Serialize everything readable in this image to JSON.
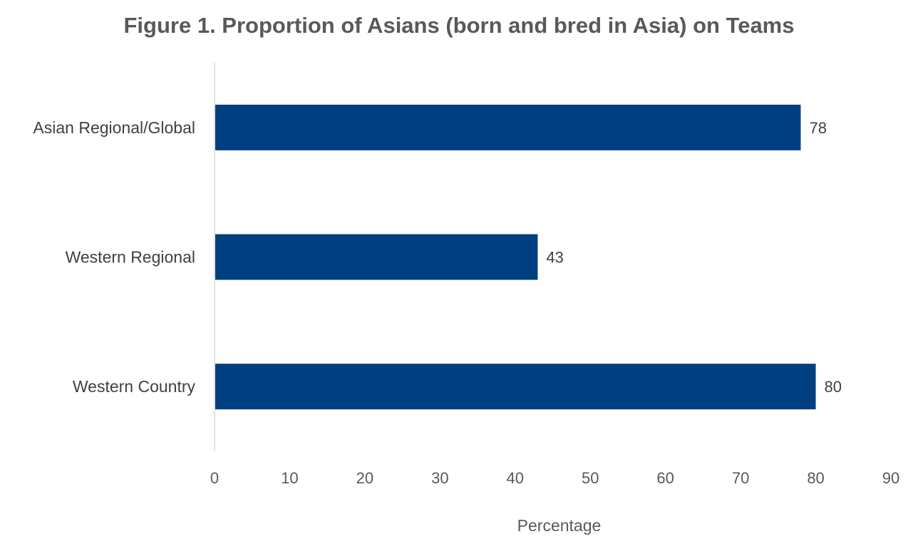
{
  "chart_data": {
    "type": "bar",
    "orientation": "horizontal",
    "title": "Figure 1. Proportion of Asians (born and bred in Asia) on Teams",
    "xlabel": "Percentage",
    "ylabel": "",
    "categories": [
      "Asian Regional/Global",
      "Western Regional",
      "Western Country"
    ],
    "values": [
      78,
      43,
      80
    ],
    "xlim": [
      0,
      90
    ],
    "xticks": [
      0,
      10,
      20,
      30,
      40,
      50,
      60,
      70,
      80,
      90
    ],
    "grid": false,
    "legend": "none",
    "data_labels": true,
    "bar_color": "#003F7F"
  }
}
